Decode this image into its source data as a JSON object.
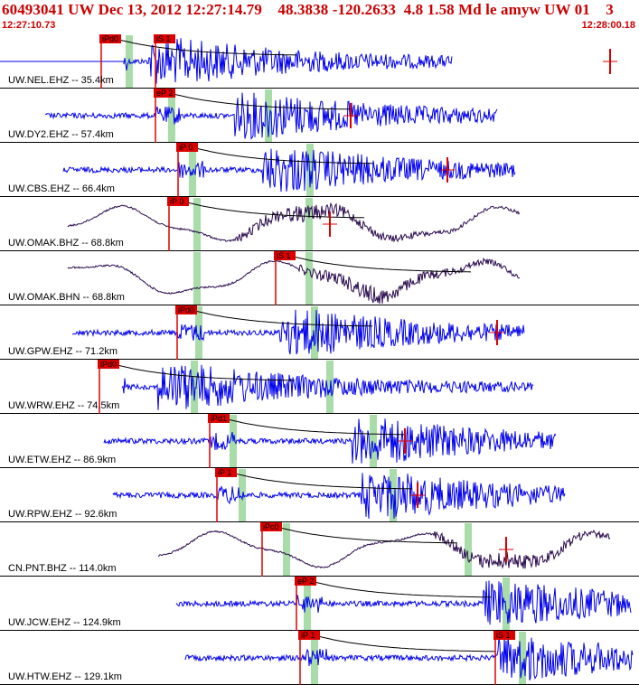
{
  "header": {
    "title": "60493041 UW Dec 13, 2012 12:27:14.79    48.3838 -120.2633  4.8 1.58 Md le amyw UW 01    3",
    "start_time": "12:27:10.73",
    "end_time": "12:28:00.18"
  },
  "colors": {
    "header_text": "#cc0000",
    "ehz_trace": "#0000ee",
    "broadband_trace": "#2a0a4e",
    "pick": "#dd0000",
    "window": "#a8dca8",
    "coda": "#000000"
  },
  "traces": [
    {
      "label": "UW.NEL.EHZ -- 35.4km",
      "kind": "ehz",
      "picks": [
        "iPd0",
        "iS 1"
      ]
    },
    {
      "label": "UW.DY2.EHZ -- 57.4km",
      "kind": "ehz",
      "picks": [
        "eP 2"
      ]
    },
    {
      "label": "UW.CBS.EHZ -- 66.4km",
      "kind": "ehz",
      "picks": [
        "iP 0"
      ]
    },
    {
      "label": "UW.OMAK.BHZ -- 68.8km",
      "kind": "bb",
      "picks": [
        "iP 0"
      ]
    },
    {
      "label": "UW.OMAK.BHN -- 68.8km",
      "kind": "bb",
      "picks": [
        "iS 1"
      ]
    },
    {
      "label": "UW.GPW.EHZ -- 71.2km",
      "kind": "ehz",
      "picks": [
        "iPd0"
      ]
    },
    {
      "label": "UW.WRW.EHZ -- 74.5km",
      "kind": "ehz",
      "picks": [
        "iPd0"
      ]
    },
    {
      "label": "UW.ETW.EHZ -- 86.9km",
      "kind": "ehz",
      "picks": [
        "iPd1"
      ]
    },
    {
      "label": "UW.RPW.EHZ -- 92.6km",
      "kind": "ehz",
      "picks": [
        "iP 1"
      ]
    },
    {
      "label": "CN.PNT.BHZ -- 114.0km",
      "kind": "bb",
      "picks": [
        "iPc0"
      ]
    },
    {
      "label": "UW.JCW.EHZ -- 124.9km",
      "kind": "ehz",
      "picks": [
        "eP 2"
      ]
    },
    {
      "label": "UW.HTW.EHZ -- 129.1km",
      "kind": "ehz",
      "picks": [
        "iP 1",
        "iS 1"
      ]
    }
  ]
}
